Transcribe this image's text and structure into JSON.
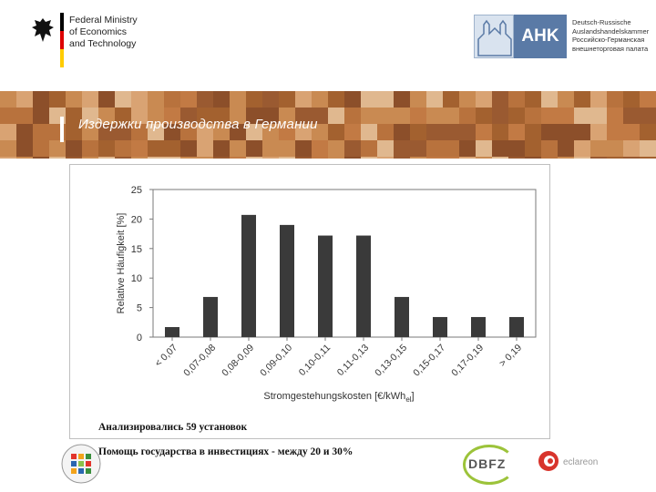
{
  "header": {
    "ministry_lines": [
      "Federal Ministry",
      "of Economics",
      "and Technology"
    ],
    "ahk_label": "AHK",
    "ahk_lines": [
      "Deutsch-Russische",
      "Auslandshandelskammer",
      "Российско-Германская",
      "внешнеторговая палата"
    ]
  },
  "banner": {
    "title": "Издержки производства в Германии"
  },
  "chart_data": {
    "type": "bar",
    "categories": [
      "< 0,07",
      "0,07-0,08",
      "0,08-0,09",
      "0,09-0,10",
      "0,10-0,11",
      "0,11-0,13",
      "0,13-0,15",
      "0,15-0,17",
      "0,17-0,19",
      "> 0,19"
    ],
    "values": [
      1.7,
      6.8,
      20.7,
      19.0,
      17.2,
      17.2,
      6.8,
      3.4,
      3.4,
      3.4
    ],
    "ylabel": "Relative Häufigkeit [%]",
    "xlabel": "Stromgestehungskosten [€/kWh",
    "xlabel_sub": "el",
    "xlabel_end": "]",
    "ylim": [
      0,
      25
    ],
    "yticks": [
      "0",
      "5",
      "10",
      "15",
      "20",
      "25"
    ],
    "bar_color": "#3a3a3a",
    "grid": false
  },
  "notes": {
    "line1": "Анализировались 59 установок",
    "line2": "Помощь государства в инвестициях  - между 20 и 30%"
  },
  "footer": {
    "dbfz_label": "DBFZ",
    "eclareon_label": "eclareon"
  },
  "colors": {
    "banner_base": "#b8723d",
    "flag_black": "#000000",
    "flag_red": "#dd0000",
    "flag_gold": "#ffcc00",
    "ahk_blue": "#5a7aa6"
  }
}
